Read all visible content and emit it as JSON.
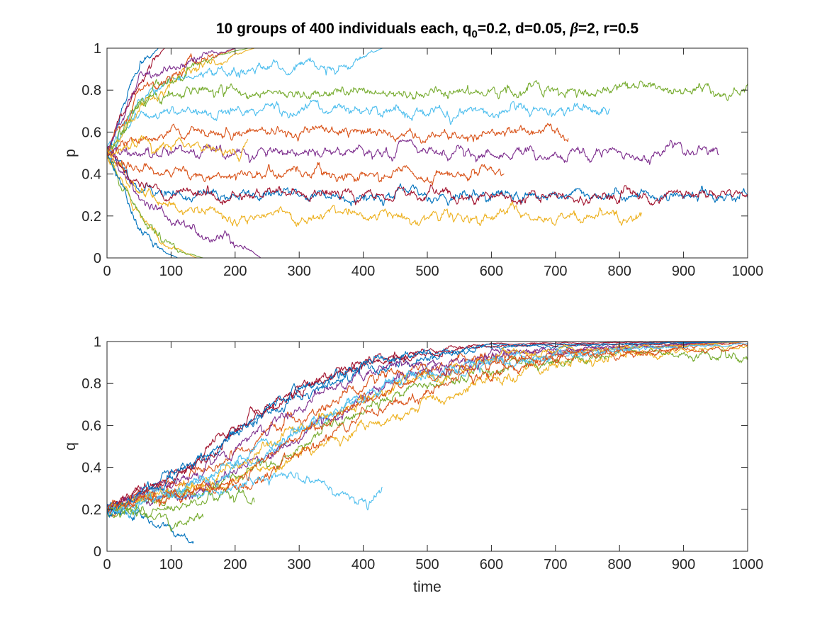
{
  "title": {
    "part1": "10 groups of 400 individuals each, q",
    "sub": "0",
    "part2": "=0.2, d=0.05, ",
    "greek": "β",
    "part3": "=2, r=0.5"
  },
  "chart_data": [
    {
      "type": "line",
      "ylabel": "p",
      "xlabel": "",
      "xlim": [
        0,
        1000
      ],
      "ylim": [
        0,
        1
      ],
      "x_ticks": [
        0,
        100,
        200,
        300,
        400,
        500,
        600,
        700,
        800,
        900,
        1000
      ],
      "y_ticks": [
        0,
        0.2,
        0.4,
        0.6,
        0.8,
        1
      ],
      "x_tick_labels": [
        "0",
        "100",
        "200",
        "300",
        "400",
        "500",
        "600",
        "700",
        "800",
        "900",
        "1000"
      ],
      "y_tick_labels": [
        "0",
        "0.2",
        "0.4",
        "0.6",
        "0.8",
        "1"
      ],
      "grid": false,
      "legend": "none",
      "series": [
        {
          "color": "#0072BD",
          "end": 1000,
          "ctrl": [
            [
              0,
              0.5
            ],
            [
              50,
              0.35
            ],
            [
              100,
              0.3
            ],
            [
              1000,
              0.3
            ]
          ]
        },
        {
          "color": "#D95319",
          "end": 620,
          "ctrl": [
            [
              0,
              0.5
            ],
            [
              50,
              0.42
            ],
            [
              100,
              0.4
            ],
            [
              620,
              0.4
            ]
          ]
        },
        {
          "color": "#EDB120",
          "end": 835,
          "ctrl": [
            [
              0,
              0.5
            ],
            [
              50,
              0.3
            ],
            [
              100,
              0.22
            ],
            [
              200,
              0.2
            ],
            [
              835,
              0.2
            ]
          ]
        },
        {
          "color": "#7E2F8E",
          "end": 955,
          "ctrl": [
            [
              0,
              0.5
            ],
            [
              50,
              0.5
            ],
            [
              100,
              0.5
            ],
            [
              955,
              0.5
            ]
          ]
        },
        {
          "color": "#77AC30",
          "end": 1000,
          "ctrl": [
            [
              0,
              0.5
            ],
            [
              50,
              0.72
            ],
            [
              100,
              0.78
            ],
            [
              1000,
              0.8
            ]
          ]
        },
        {
          "color": "#4DBEEE",
          "end": 785,
          "ctrl": [
            [
              0,
              0.5
            ],
            [
              50,
              0.65
            ],
            [
              100,
              0.7
            ],
            [
              785,
              0.7
            ]
          ]
        },
        {
          "color": "#A2142F",
          "end": 1000,
          "ctrl": [
            [
              0,
              0.5
            ],
            [
              50,
              0.34
            ],
            [
              100,
              0.3
            ],
            [
              1000,
              0.3
            ]
          ]
        },
        {
          "color": "#D95319",
          "end": 720,
          "ctrl": [
            [
              0,
              0.5
            ],
            [
              50,
              0.58
            ],
            [
              100,
              0.6
            ],
            [
              720,
              0.6
            ]
          ]
        },
        {
          "color": "#7E2F8E",
          "end": 240,
          "ctrl": [
            [
              0,
              0.5
            ],
            [
              50,
              0.3
            ],
            [
              100,
              0.18
            ],
            [
              150,
              0.12
            ],
            [
              200,
              0.08
            ],
            [
              240,
              0
            ]
          ]
        },
        {
          "color": "#4DBEEE",
          "end": 430,
          "ctrl": [
            [
              0,
              0.5
            ],
            [
              50,
              0.75
            ],
            [
              100,
              0.85
            ],
            [
              250,
              0.9
            ],
            [
              380,
              0.92
            ],
            [
              430,
              1
            ]
          ]
        },
        {
          "color": "#0072BD",
          "end": 120,
          "ctrl": [
            [
              0,
              0.5
            ],
            [
              40,
              0.85
            ],
            [
              80,
              1
            ],
            [
              120,
              1
            ]
          ]
        },
        {
          "color": "#A2142F",
          "end": 130,
          "ctrl": [
            [
              0,
              0.5
            ],
            [
              40,
              0.82
            ],
            [
              90,
              1
            ],
            [
              130,
              1
            ]
          ]
        },
        {
          "color": "#EDB120",
          "end": 140,
          "ctrl": [
            [
              0,
              0.5
            ],
            [
              40,
              0.25
            ],
            [
              90,
              0.05
            ],
            [
              140,
              0
            ]
          ]
        },
        {
          "color": "#77AC30",
          "end": 150,
          "ctrl": [
            [
              0,
              0.5
            ],
            [
              50,
              0.2
            ],
            [
              100,
              0.05
            ],
            [
              150,
              0
            ]
          ]
        },
        {
          "color": "#0072BD",
          "end": 110,
          "ctrl": [
            [
              0,
              0.5
            ],
            [
              40,
              0.2
            ],
            [
              80,
              0.05
            ],
            [
              110,
              0
            ]
          ]
        },
        {
          "color": "#EDB120",
          "end": 230,
          "ctrl": [
            [
              0,
              0.5
            ],
            [
              60,
              0.75
            ],
            [
              150,
              0.92
            ],
            [
              230,
              1
            ]
          ]
        },
        {
          "color": "#77AC30",
          "end": 220,
          "ctrl": [
            [
              0,
              0.5
            ],
            [
              60,
              0.78
            ],
            [
              150,
              0.95
            ],
            [
              220,
              1
            ]
          ]
        },
        {
          "color": "#D95319",
          "end": 200,
          "ctrl": [
            [
              0,
              0.5
            ],
            [
              50,
              0.8
            ],
            [
              120,
              0.9
            ],
            [
              200,
              1
            ]
          ]
        },
        {
          "color": "#7E2F8E",
          "end": 200,
          "ctrl": [
            [
              0,
              0.5
            ],
            [
              50,
              0.85
            ],
            [
              120,
              0.92
            ],
            [
              200,
              1
            ]
          ]
        },
        {
          "color": "#EDB120",
          "end": 220,
          "ctrl": [
            [
              0,
              0.5
            ],
            [
              60,
              0.55
            ],
            [
              150,
              0.52
            ],
            [
              220,
              0.5
            ]
          ]
        }
      ]
    },
    {
      "type": "line",
      "ylabel": "q",
      "xlabel": "time",
      "xlim": [
        0,
        1000
      ],
      "ylim": [
        0,
        1
      ],
      "x_ticks": [
        0,
        100,
        200,
        300,
        400,
        500,
        600,
        700,
        800,
        900,
        1000
      ],
      "y_ticks": [
        0,
        0.2,
        0.4,
        0.6,
        0.8,
        1
      ],
      "x_tick_labels": [
        "0",
        "100",
        "200",
        "300",
        "400",
        "500",
        "600",
        "700",
        "800",
        "900",
        "1000"
      ],
      "y_tick_labels": [
        "0",
        "0.2",
        "0.4",
        "0.6",
        "0.8",
        "1"
      ],
      "grid": false,
      "legend": "none",
      "series": [
        {
          "color": "#0072BD",
          "end": 1000,
          "ctrl": [
            [
              0,
              0.2
            ],
            [
              100,
              0.35
            ],
            [
              250,
              0.65
            ],
            [
              400,
              0.88
            ],
            [
              600,
              0.97
            ],
            [
              1000,
              1
            ]
          ]
        },
        {
          "color": "#D95319",
          "end": 1000,
          "ctrl": [
            [
              0,
              0.2
            ],
            [
              100,
              0.3
            ],
            [
              250,
              0.55
            ],
            [
              400,
              0.8
            ],
            [
              600,
              0.92
            ],
            [
              800,
              0.97
            ],
            [
              1000,
              1
            ]
          ]
        },
        {
          "color": "#EDB120",
          "end": 1000,
          "ctrl": [
            [
              0,
              0.2
            ],
            [
              150,
              0.3
            ],
            [
              300,
              0.45
            ],
            [
              400,
              0.6
            ],
            [
              600,
              0.82
            ],
            [
              800,
              0.93
            ],
            [
              1000,
              0.98
            ]
          ]
        },
        {
          "color": "#7E2F8E",
          "end": 1000,
          "ctrl": [
            [
              0,
              0.2
            ],
            [
              120,
              0.33
            ],
            [
              250,
              0.6
            ],
            [
              400,
              0.85
            ],
            [
              600,
              0.95
            ],
            [
              1000,
              1
            ]
          ]
        },
        {
          "color": "#77AC30",
          "end": 1000,
          "ctrl": [
            [
              0,
              0.2
            ],
            [
              150,
              0.28
            ],
            [
              300,
              0.5
            ],
            [
              450,
              0.75
            ],
            [
              650,
              0.9
            ],
            [
              850,
              0.96
            ],
            [
              1000,
              0.91
            ]
          ]
        },
        {
          "color": "#4DBEEE",
          "end": 1000,
          "ctrl": [
            [
              0,
              0.2
            ],
            [
              130,
              0.33
            ],
            [
              280,
              0.55
            ],
            [
              450,
              0.8
            ],
            [
              650,
              0.93
            ],
            [
              1000,
              1
            ]
          ]
        },
        {
          "color": "#A2142F",
          "end": 1000,
          "ctrl": [
            [
              0,
              0.2
            ],
            [
              100,
              0.34
            ],
            [
              250,
              0.68
            ],
            [
              400,
              0.9
            ],
            [
              600,
              0.98
            ],
            [
              1000,
              0.99
            ]
          ]
        },
        {
          "color": "#D95319",
          "end": 1000,
          "ctrl": [
            [
              0,
              0.2
            ],
            [
              200,
              0.3
            ],
            [
              350,
              0.55
            ],
            [
              500,
              0.78
            ],
            [
              700,
              0.92
            ],
            [
              1000,
              1
            ]
          ]
        },
        {
          "color": "#7E2F8E",
          "end": 1000,
          "ctrl": [
            [
              0,
              0.2
            ],
            [
              150,
              0.3
            ],
            [
              300,
              0.55
            ],
            [
              450,
              0.82
            ],
            [
              650,
              0.95
            ],
            [
              1000,
              1
            ]
          ]
        },
        {
          "color": "#4DBEEE",
          "end": 430,
          "ctrl": [
            [
              0,
              0.2
            ],
            [
              100,
              0.25
            ],
            [
              200,
              0.3
            ],
            [
              280,
              0.37
            ],
            [
              340,
              0.3
            ],
            [
              400,
              0.22
            ],
            [
              430,
              0.28
            ]
          ]
        },
        {
          "color": "#0072BD",
          "end": 135,
          "ctrl": [
            [
              0,
              0.2
            ],
            [
              60,
              0.15
            ],
            [
              100,
              0.08
            ],
            [
              135,
              0.05
            ]
          ]
        },
        {
          "color": "#77AC30",
          "end": 150,
          "ctrl": [
            [
              0,
              0.2
            ],
            [
              60,
              0.17
            ],
            [
              100,
              0.14
            ],
            [
              150,
              0.16
            ]
          ]
        },
        {
          "color": "#77AC30",
          "end": 230,
          "ctrl": [
            [
              0,
              0.2
            ],
            [
              100,
              0.22
            ],
            [
              180,
              0.25
            ],
            [
              230,
              0.23
            ]
          ]
        },
        {
          "color": "#EDB120",
          "end": 1000,
          "ctrl": [
            [
              0,
              0.2
            ],
            [
              150,
              0.32
            ],
            [
              300,
              0.58
            ],
            [
              450,
              0.8
            ],
            [
              600,
              0.93
            ],
            [
              1000,
              1
            ]
          ]
        },
        {
          "color": "#A2142F",
          "end": 1000,
          "ctrl": [
            [
              0,
              0.2
            ],
            [
              120,
              0.4
            ],
            [
              250,
              0.7
            ],
            [
              400,
              0.92
            ],
            [
              600,
              0.99
            ],
            [
              1000,
              1
            ]
          ]
        },
        {
          "color": "#0072BD",
          "end": 1000,
          "ctrl": [
            [
              0,
              0.2
            ],
            [
              110,
              0.38
            ],
            [
              250,
              0.68
            ],
            [
              400,
              0.9
            ],
            [
              600,
              0.98
            ],
            [
              1000,
              1
            ]
          ]
        },
        {
          "color": "#4DBEEE",
          "end": 1000,
          "ctrl": [
            [
              0,
              0.2
            ],
            [
              150,
              0.3
            ],
            [
              300,
              0.56
            ],
            [
              450,
              0.82
            ],
            [
              600,
              0.92
            ],
            [
              1000,
              0.99
            ]
          ]
        },
        {
          "color": "#D95319",
          "end": 1000,
          "ctrl": [
            [
              0,
              0.2
            ],
            [
              170,
              0.3
            ],
            [
              320,
              0.58
            ],
            [
              480,
              0.82
            ],
            [
              650,
              0.92
            ],
            [
              1000,
              0.97
            ]
          ]
        }
      ]
    }
  ]
}
